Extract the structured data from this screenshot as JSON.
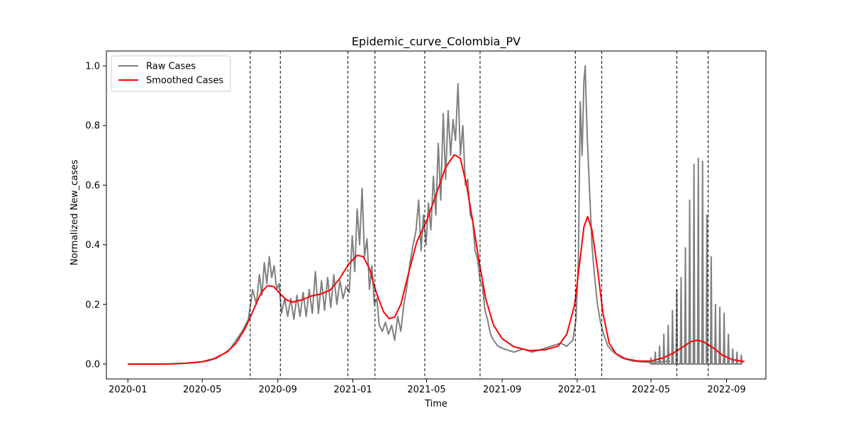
{
  "chart_data": {
    "type": "line",
    "title": "Epidemic_curve_Colombia_PV",
    "xlabel": "Time",
    "ylabel": "Normalized New_cases",
    "xlim": [
      "2019-11-27",
      "2022-11-04"
    ],
    "ylim": [
      -0.05,
      1.05
    ],
    "x_ticks": [
      "2020-01",
      "2020-05",
      "2020-09",
      "2021-01",
      "2021-05",
      "2021-09",
      "2022-01",
      "2022-05",
      "2022-09"
    ],
    "y_ticks": [
      "0.0",
      "0.2",
      "0.4",
      "0.6",
      "0.8",
      "1.0"
    ],
    "grid": false,
    "legend": {
      "position": "upper-left",
      "entries": [
        "Raw Cases",
        "Smoothed Cases"
      ]
    },
    "colors": {
      "raw": "#808080",
      "smoothed": "#ff0000",
      "vlines": "#000000"
    },
    "vlines": [
      "2020-07-18",
      "2020-09-05",
      "2020-12-24",
      "2021-02-06",
      "2021-04-28",
      "2021-07-27",
      "2021-12-29",
      "2022-02-10",
      "2022-06-12",
      "2022-08-02"
    ],
    "series": [
      {
        "name": "Raw Cases",
        "color": "#808080",
        "points": [
          [
            "2020-01-01",
            0.0
          ],
          [
            "2020-03-01",
            0.0
          ],
          [
            "2020-04-01",
            0.003
          ],
          [
            "2020-04-20",
            0.005
          ],
          [
            "2020-05-10",
            0.01
          ],
          [
            "2020-05-25",
            0.02
          ],
          [
            "2020-06-05",
            0.035
          ],
          [
            "2020-06-15",
            0.05
          ],
          [
            "2020-06-25",
            0.08
          ],
          [
            "2020-07-05",
            0.11
          ],
          [
            "2020-07-15",
            0.15
          ],
          [
            "2020-07-22",
            0.25
          ],
          [
            "2020-07-28",
            0.2
          ],
          [
            "2020-08-02",
            0.3
          ],
          [
            "2020-08-06",
            0.23
          ],
          [
            "2020-08-10",
            0.34
          ],
          [
            "2020-08-14",
            0.27
          ],
          [
            "2020-08-18",
            0.36
          ],
          [
            "2020-08-22",
            0.29
          ],
          [
            "2020-08-26",
            0.33
          ],
          [
            "2020-08-30",
            0.25
          ],
          [
            "2020-09-03",
            0.27
          ],
          [
            "2020-09-07",
            0.17
          ],
          [
            "2020-09-12",
            0.22
          ],
          [
            "2020-09-17",
            0.16
          ],
          [
            "2020-09-22",
            0.22
          ],
          [
            "2020-09-27",
            0.15
          ],
          [
            "2020-10-02",
            0.23
          ],
          [
            "2020-10-07",
            0.16
          ],
          [
            "2020-10-12",
            0.24
          ],
          [
            "2020-10-17",
            0.16
          ],
          [
            "2020-10-22",
            0.25
          ],
          [
            "2020-10-27",
            0.17
          ],
          [
            "2020-11-01",
            0.31
          ],
          [
            "2020-11-06",
            0.17
          ],
          [
            "2020-11-11",
            0.28
          ],
          [
            "2020-11-16",
            0.18
          ],
          [
            "2020-11-21",
            0.29
          ],
          [
            "2020-11-26",
            0.19
          ],
          [
            "2020-12-01",
            0.3
          ],
          [
            "2020-12-06",
            0.2
          ],
          [
            "2020-12-11",
            0.28
          ],
          [
            "2020-12-16",
            0.22
          ],
          [
            "2020-12-21",
            0.26
          ],
          [
            "2020-12-26",
            0.24
          ],
          [
            "2020-12-31",
            0.43
          ],
          [
            "2021-01-04",
            0.31
          ],
          [
            "2021-01-08",
            0.52
          ],
          [
            "2021-01-12",
            0.4
          ],
          [
            "2021-01-16",
            0.59
          ],
          [
            "2021-01-20",
            0.36
          ],
          [
            "2021-01-24",
            0.42
          ],
          [
            "2021-01-28",
            0.25
          ],
          [
            "2021-02-01",
            0.33
          ],
          [
            "2021-02-05",
            0.2
          ],
          [
            "2021-02-09",
            0.22
          ],
          [
            "2021-02-13",
            0.13
          ],
          [
            "2021-02-18",
            0.11
          ],
          [
            "2021-02-23",
            0.14
          ],
          [
            "2021-02-28",
            0.1
          ],
          [
            "2021-03-05",
            0.13
          ],
          [
            "2021-03-10",
            0.08
          ],
          [
            "2021-03-15",
            0.16
          ],
          [
            "2021-03-20",
            0.11
          ],
          [
            "2021-03-25",
            0.2
          ],
          [
            "2021-03-30",
            0.26
          ],
          [
            "2021-04-04",
            0.34
          ],
          [
            "2021-04-09",
            0.4
          ],
          [
            "2021-04-14",
            0.45
          ],
          [
            "2021-04-18",
            0.55
          ],
          [
            "2021-04-22",
            0.38
          ],
          [
            "2021-04-26",
            0.5
          ],
          [
            "2021-04-30",
            0.4
          ],
          [
            "2021-05-04",
            0.54
          ],
          [
            "2021-05-08",
            0.45
          ],
          [
            "2021-05-12",
            0.63
          ],
          [
            "2021-05-16",
            0.5
          ],
          [
            "2021-05-20",
            0.74
          ],
          [
            "2021-05-24",
            0.55
          ],
          [
            "2021-05-28",
            0.84
          ],
          [
            "2021-06-01",
            0.62
          ],
          [
            "2021-06-05",
            0.85
          ],
          [
            "2021-06-09",
            0.7
          ],
          [
            "2021-06-13",
            0.82
          ],
          [
            "2021-06-17",
            0.75
          ],
          [
            "2021-06-21",
            0.94
          ],
          [
            "2021-06-25",
            0.7
          ],
          [
            "2021-06-29",
            0.8
          ],
          [
            "2021-07-03",
            0.6
          ],
          [
            "2021-07-07",
            0.62
          ],
          [
            "2021-07-11",
            0.5
          ],
          [
            "2021-07-15",
            0.48
          ],
          [
            "2021-07-19",
            0.38
          ],
          [
            "2021-07-23",
            0.35
          ],
          [
            "2021-07-27",
            0.28
          ],
          [
            "2021-07-31",
            0.26
          ],
          [
            "2021-08-04",
            0.18
          ],
          [
            "2021-08-08",
            0.15
          ],
          [
            "2021-08-13",
            0.1
          ],
          [
            "2021-08-18",
            0.08
          ],
          [
            "2021-08-25",
            0.06
          ],
          [
            "2021-09-05",
            0.05
          ],
          [
            "2021-09-20",
            0.04
          ],
          [
            "2021-10-05",
            0.05
          ],
          [
            "2021-10-20",
            0.04
          ],
          [
            "2021-11-05",
            0.05
          ],
          [
            "2021-11-20",
            0.06
          ],
          [
            "2021-12-05",
            0.07
          ],
          [
            "2021-12-15",
            0.06
          ],
          [
            "2021-12-25",
            0.08
          ],
          [
            "2021-12-30",
            0.15
          ],
          [
            "2022-01-03",
            0.35
          ],
          [
            "2022-01-06",
            0.88
          ],
          [
            "2022-01-09",
            0.7
          ],
          [
            "2022-01-12",
            0.95
          ],
          [
            "2022-01-14",
            1.0
          ],
          [
            "2022-01-17",
            0.78
          ],
          [
            "2022-01-21",
            0.59
          ],
          [
            "2022-01-25",
            0.4
          ],
          [
            "2022-01-29",
            0.3
          ],
          [
            "2022-02-03",
            0.2
          ],
          [
            "2022-02-08",
            0.14
          ],
          [
            "2022-02-13",
            0.1
          ],
          [
            "2022-02-20",
            0.06
          ],
          [
            "2022-03-01",
            0.04
          ],
          [
            "2022-03-15",
            0.02
          ],
          [
            "2022-04-01",
            0.01
          ],
          [
            "2022-05-01",
            0.005
          ],
          [
            "2022-06-01",
            0.01
          ]
        ]
      },
      {
        "name": "Raw Cases spikes",
        "color": "#808080",
        "spikes": [
          [
            "2022-05-01",
            0.02
          ],
          [
            "2022-05-08",
            0.04
          ],
          [
            "2022-05-15",
            0.06
          ],
          [
            "2022-05-22",
            0.1
          ],
          [
            "2022-05-29",
            0.13
          ],
          [
            "2022-06-05",
            0.18
          ],
          [
            "2022-06-12",
            0.25
          ],
          [
            "2022-06-19",
            0.29
          ],
          [
            "2022-06-26",
            0.39
          ],
          [
            "2022-07-03",
            0.55
          ],
          [
            "2022-07-10",
            0.67
          ],
          [
            "2022-07-17",
            0.69
          ],
          [
            "2022-07-24",
            0.68
          ],
          [
            "2022-07-31",
            0.5
          ],
          [
            "2022-08-07",
            0.36
          ],
          [
            "2022-08-14",
            0.2
          ],
          [
            "2022-08-21",
            0.19
          ],
          [
            "2022-08-28",
            0.17
          ],
          [
            "2022-09-04",
            0.1
          ],
          [
            "2022-09-11",
            0.05
          ],
          [
            "2022-09-18",
            0.04
          ],
          [
            "2022-09-25",
            0.03
          ]
        ]
      },
      {
        "name": "Smoothed Cases",
        "color": "#ff0000",
        "points": [
          [
            "2020-01-01",
            0.0
          ],
          [
            "2020-03-01",
            0.0
          ],
          [
            "2020-04-01",
            0.002
          ],
          [
            "2020-05-01",
            0.008
          ],
          [
            "2020-05-20",
            0.018
          ],
          [
            "2020-06-10",
            0.04
          ],
          [
            "2020-06-25",
            0.07
          ],
          [
            "2020-07-10",
            0.12
          ],
          [
            "2020-07-25",
            0.19
          ],
          [
            "2020-08-05",
            0.24
          ],
          [
            "2020-08-15",
            0.263
          ],
          [
            "2020-08-25",
            0.26
          ],
          [
            "2020-09-05",
            0.235
          ],
          [
            "2020-09-15",
            0.215
          ],
          [
            "2020-09-25",
            0.208
          ],
          [
            "2020-10-10",
            0.215
          ],
          [
            "2020-10-25",
            0.228
          ],
          [
            "2020-11-10",
            0.235
          ],
          [
            "2020-11-25",
            0.248
          ],
          [
            "2020-12-10",
            0.285
          ],
          [
            "2020-12-25",
            0.335
          ],
          [
            "2021-01-08",
            0.365
          ],
          [
            "2021-01-18",
            0.36
          ],
          [
            "2021-01-28",
            0.32
          ],
          [
            "2021-02-08",
            0.24
          ],
          [
            "2021-02-20",
            0.175
          ],
          [
            "2021-03-01",
            0.152
          ],
          [
            "2021-03-10",
            0.158
          ],
          [
            "2021-03-20",
            0.2
          ],
          [
            "2021-04-01",
            0.3
          ],
          [
            "2021-04-15",
            0.41
          ],
          [
            "2021-05-01",
            0.48
          ],
          [
            "2021-05-15",
            0.56
          ],
          [
            "2021-06-01",
            0.66
          ],
          [
            "2021-06-15",
            0.702
          ],
          [
            "2021-06-25",
            0.69
          ],
          [
            "2021-07-05",
            0.6
          ],
          [
            "2021-07-15",
            0.48
          ],
          [
            "2021-07-25",
            0.35
          ],
          [
            "2021-08-05",
            0.22
          ],
          [
            "2021-08-18",
            0.13
          ],
          [
            "2021-09-01",
            0.085
          ],
          [
            "2021-09-20",
            0.058
          ],
          [
            "2021-10-15",
            0.045
          ],
          [
            "2021-11-10",
            0.048
          ],
          [
            "2021-12-01",
            0.06
          ],
          [
            "2021-12-15",
            0.1
          ],
          [
            "2021-12-28",
            0.2
          ],
          [
            "2022-01-05",
            0.34
          ],
          [
            "2022-01-12",
            0.46
          ],
          [
            "2022-01-18",
            0.495
          ],
          [
            "2022-01-25",
            0.45
          ],
          [
            "2022-02-03",
            0.32
          ],
          [
            "2022-02-12",
            0.17
          ],
          [
            "2022-02-22",
            0.07
          ],
          [
            "2022-03-05",
            0.035
          ],
          [
            "2022-03-20",
            0.018
          ],
          [
            "2022-04-10",
            0.01
          ],
          [
            "2022-05-01",
            0.01
          ],
          [
            "2022-05-20",
            0.02
          ],
          [
            "2022-06-05",
            0.035
          ],
          [
            "2022-06-20",
            0.055
          ],
          [
            "2022-07-05",
            0.075
          ],
          [
            "2022-07-15",
            0.08
          ],
          [
            "2022-07-25",
            0.075
          ],
          [
            "2022-08-10",
            0.055
          ],
          [
            "2022-08-25",
            0.03
          ],
          [
            "2022-09-10",
            0.015
          ],
          [
            "2022-09-30",
            0.008
          ]
        ]
      }
    ]
  }
}
